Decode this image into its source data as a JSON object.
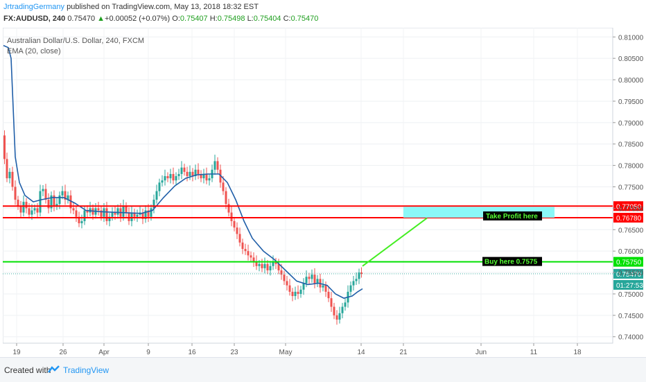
{
  "header": {
    "author": "JrtradingGermany",
    "published_text": "published on TradingView.com, May 13, 2018 18:32 EST",
    "symbol_line": {
      "symbol": "FX:AUDUSD, 240",
      "price": "0.75470",
      "change_arrow": "▲",
      "change": "+0.00052 (+0.07%)",
      "open_label": "O:",
      "open": "0.75407",
      "high_label": "H:",
      "high": "0.75498",
      "low_label": "L:",
      "low": "0.75404",
      "close_label": "C:",
      "close": "0.75470"
    }
  },
  "legend": {
    "title": "Australian Dollar/U.S. Dollar, 240, FXCM",
    "indicator": "EMA (20, close)"
  },
  "footer": {
    "created_with": "Created with",
    "brand": "TradingView"
  },
  "chart_data": {
    "type": "candlestick",
    "title": "Australian Dollar/U.S. Dollar, 240, FXCM",
    "ylim": [
      0.7385,
      0.8115
    ],
    "y_ticks": [
      "0.81000",
      "0.80500",
      "0.80000",
      "0.79500",
      "0.79000",
      "0.78500",
      "0.78000",
      "0.77500",
      "0.77000",
      "0.76500",
      "0.76000",
      "0.75500",
      "0.75000",
      "0.74500",
      "0.74000"
    ],
    "x_ticks": [
      "19",
      "26",
      "Apr",
      "9",
      "16",
      "23",
      "May",
      "14",
      "21",
      "Jun",
      "11",
      "18"
    ],
    "price_path": [
      [
        1,
        0.787
      ],
      [
        4,
        0.7815
      ],
      [
        8,
        0.777
      ],
      [
        12,
        0.7785
      ],
      [
        16,
        0.775
      ],
      [
        20,
        0.772
      ],
      [
        24,
        0.7705
      ],
      [
        28,
        0.769
      ],
      [
        32,
        0.7715
      ],
      [
        36,
        0.77
      ],
      [
        40,
        0.7685
      ],
      [
        44,
        0.7695
      ],
      [
        48,
        0.77
      ],
      [
        52,
        0.769
      ],
      [
        56,
        0.774
      ],
      [
        60,
        0.7745
      ],
      [
        64,
        0.772
      ],
      [
        68,
        0.77
      ],
      [
        72,
        0.773
      ],
      [
        76,
        0.7705
      ],
      [
        80,
        0.771
      ],
      [
        84,
        0.773
      ],
      [
        88,
        0.774
      ],
      [
        92,
        0.772
      ],
      [
        96,
        0.773
      ],
      [
        100,
        0.77
      ],
      [
        104,
        0.7695
      ],
      [
        108,
        0.768
      ],
      [
        112,
        0.7665
      ],
      [
        116,
        0.767
      ],
      [
        120,
        0.7695
      ],
      [
        124,
        0.769
      ],
      [
        128,
        0.77
      ],
      [
        132,
        0.7685
      ],
      [
        136,
        0.77
      ],
      [
        140,
        0.7695
      ],
      [
        144,
        0.768
      ],
      [
        148,
        0.77
      ],
      [
        152,
        0.767
      ],
      [
        156,
        0.768
      ],
      [
        160,
        0.769
      ],
      [
        164,
        0.7685
      ],
      [
        168,
        0.77
      ],
      [
        172,
        0.768
      ],
      [
        176,
        0.7705
      ],
      [
        180,
        0.769
      ],
      [
        184,
        0.767
      ],
      [
        188,
        0.769
      ],
      [
        192,
        0.768
      ],
      [
        196,
        0.7685
      ],
      [
        200,
        0.769
      ],
      [
        204,
        0.7675
      ],
      [
        208,
        0.7695
      ],
      [
        212,
        0.768
      ],
      [
        216,
        0.77
      ],
      [
        220,
        0.772
      ],
      [
        224,
        0.774
      ],
      [
        228,
        0.776
      ],
      [
        232,
        0.7765
      ],
      [
        236,
        0.7775
      ],
      [
        240,
        0.777
      ],
      [
        244,
        0.778
      ],
      [
        248,
        0.7765
      ],
      [
        252,
        0.7775
      ],
      [
        256,
        0.778
      ],
      [
        260,
        0.7795
      ],
      [
        264,
        0.7785
      ],
      [
        268,
        0.7775
      ],
      [
        272,
        0.7785
      ],
      [
        276,
        0.7775
      ],
      [
        280,
        0.779
      ],
      [
        284,
        0.778
      ],
      [
        288,
        0.777
      ],
      [
        292,
        0.778
      ],
      [
        296,
        0.7765
      ],
      [
        300,
        0.777
      ],
      [
        304,
        0.779
      ],
      [
        308,
        0.781
      ],
      [
        312,
        0.779
      ],
      [
        316,
        0.776
      ],
      [
        320,
        0.774
      ],
      [
        324,
        0.771
      ],
      [
        328,
        0.769
      ],
      [
        332,
        0.767
      ],
      [
        336,
        0.7655
      ],
      [
        340,
        0.764
      ],
      [
        344,
        0.762
      ],
      [
        348,
        0.7605
      ],
      [
        352,
        0.76
      ],
      [
        356,
        0.759
      ],
      [
        360,
        0.7585
      ],
      [
        364,
        0.7575
      ],
      [
        368,
        0.7565
      ],
      [
        372,
        0.757
      ],
      [
        376,
        0.756
      ],
      [
        380,
        0.757
      ],
      [
        384,
        0.7555
      ],
      [
        388,
        0.7565
      ],
      [
        392,
        0.7575
      ],
      [
        396,
        0.757
      ],
      [
        400,
        0.7555
      ],
      [
        404,
        0.7545
      ],
      [
        408,
        0.753
      ],
      [
        412,
        0.752
      ],
      [
        416,
        0.7505
      ],
      [
        420,
        0.7495
      ],
      [
        424,
        0.7505
      ],
      [
        428,
        0.75
      ],
      [
        432,
        0.751
      ],
      [
        436,
        0.7525
      ],
      [
        440,
        0.754
      ],
      [
        444,
        0.7535
      ],
      [
        448,
        0.7545
      ],
      [
        452,
        0.7525
      ],
      [
        456,
        0.7535
      ],
      [
        460,
        0.7515
      ],
      [
        464,
        0.752
      ],
      [
        468,
        0.7505
      ],
      [
        472,
        0.749
      ],
      [
        476,
        0.747
      ],
      [
        480,
        0.745
      ],
      [
        484,
        0.744
      ],
      [
        488,
        0.7455
      ],
      [
        492,
        0.747
      ],
      [
        496,
        0.748
      ],
      [
        500,
        0.7505
      ],
      [
        504,
        0.752
      ],
      [
        508,
        0.753
      ],
      [
        512,
        0.7535
      ],
      [
        516,
        0.755
      ],
      [
        519,
        0.7547
      ]
    ],
    "ema": [
      [
        1,
        0.808
      ],
      [
        8,
        0.8075
      ],
      [
        12,
        0.805
      ],
      [
        18,
        0.782
      ],
      [
        24,
        0.776
      ],
      [
        32,
        0.773
      ],
      [
        44,
        0.7715
      ],
      [
        56,
        0.772
      ],
      [
        72,
        0.7725
      ],
      [
        88,
        0.7725
      ],
      [
        104,
        0.7712
      ],
      [
        120,
        0.7695
      ],
      [
        140,
        0.7692
      ],
      [
        170,
        0.769
      ],
      [
        200,
        0.7688
      ],
      [
        216,
        0.7695
      ],
      [
        232,
        0.7725
      ],
      [
        248,
        0.7752
      ],
      [
        264,
        0.777
      ],
      [
        280,
        0.7778
      ],
      [
        296,
        0.778
      ],
      [
        312,
        0.778
      ],
      [
        324,
        0.776
      ],
      [
        336,
        0.772
      ],
      [
        348,
        0.767
      ],
      [
        360,
        0.763
      ],
      [
        376,
        0.76
      ],
      [
        392,
        0.758
      ],
      [
        408,
        0.7555
      ],
      [
        424,
        0.753
      ],
      [
        440,
        0.7522
      ],
      [
        456,
        0.7525
      ],
      [
        468,
        0.752
      ],
      [
        480,
        0.75
      ],
      [
        492,
        0.749
      ],
      [
        504,
        0.7495
      ],
      [
        512,
        0.7505
      ],
      [
        519,
        0.7512
      ]
    ],
    "levels": [
      {
        "price": 0.7705,
        "label": "0.77050",
        "color": "#ff0000"
      },
      {
        "price": 0.7678,
        "label": "0.76780",
        "color": "#ff0000"
      },
      {
        "price": 0.7575,
        "label": "0.75750",
        "color": "#00e000"
      }
    ],
    "last_price": {
      "price": 0.7547,
      "label": "0.75470",
      "countdown": "01:27:53"
    },
    "annotations": [
      {
        "text": "Take Profit here"
      },
      {
        "text": "Buy here 0.7575"
      }
    ],
    "colors": {
      "up": "#26a69a",
      "down": "#ef5350",
      "ema": "#1f5ea8",
      "target_box": "#7ef7f7",
      "trend_arrow": "#44ee22"
    }
  }
}
